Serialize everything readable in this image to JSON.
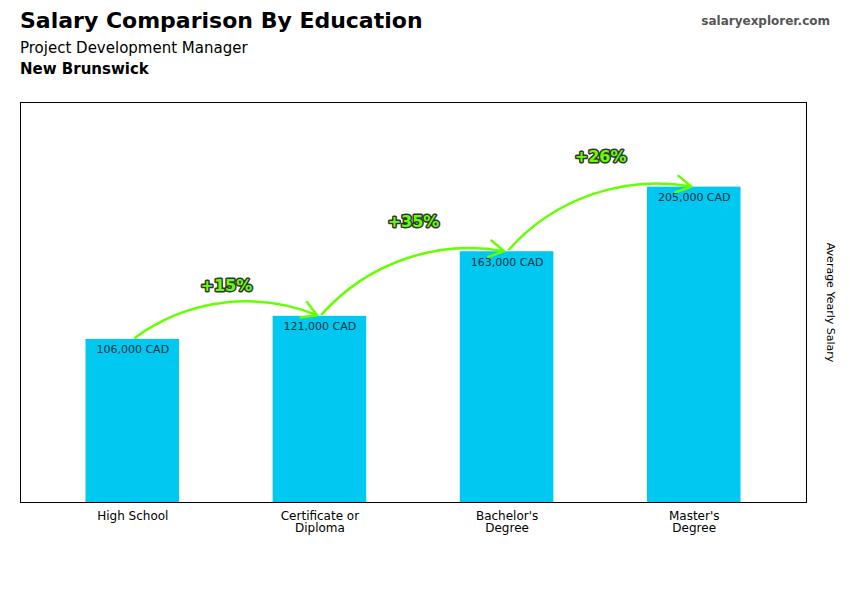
{
  "chart_data": {
    "type": "bar",
    "title": "Salary Comparison By Education",
    "subtitle": "Project Development Manager",
    "location": "New Brunswick",
    "source": "salaryexplorer.com",
    "ylabel": "Average Yearly Salary",
    "categories": [
      "High School",
      "Certificate or\nDiploma",
      "Bachelor's\nDegree",
      "Master's\nDegree"
    ],
    "values": [
      106000,
      121000,
      163000,
      205000
    ],
    "value_labels": [
      "106,000 CAD",
      "121,000 CAD",
      "163,000 CAD",
      "205,000 CAD"
    ],
    "data_labels": true,
    "color": "#00c8f0",
    "annotations": [
      {
        "text": "+15%",
        "from": "High School",
        "to": "Certificate or\nDiploma",
        "color": "#66ff00"
      },
      {
        "text": "+35%",
        "from": "Certificate or\nDiploma",
        "to": "Bachelor's\nDegree",
        "color": "#66ff00"
      },
      {
        "text": "+26%",
        "from": "Bachelor's\nDegree",
        "to": "Master's\nDegree",
        "color": "#66ff00"
      }
    ],
    "ylim": [
      0,
      260000
    ],
    "yticks": [],
    "tick_labels": "x",
    "grid": false
  }
}
